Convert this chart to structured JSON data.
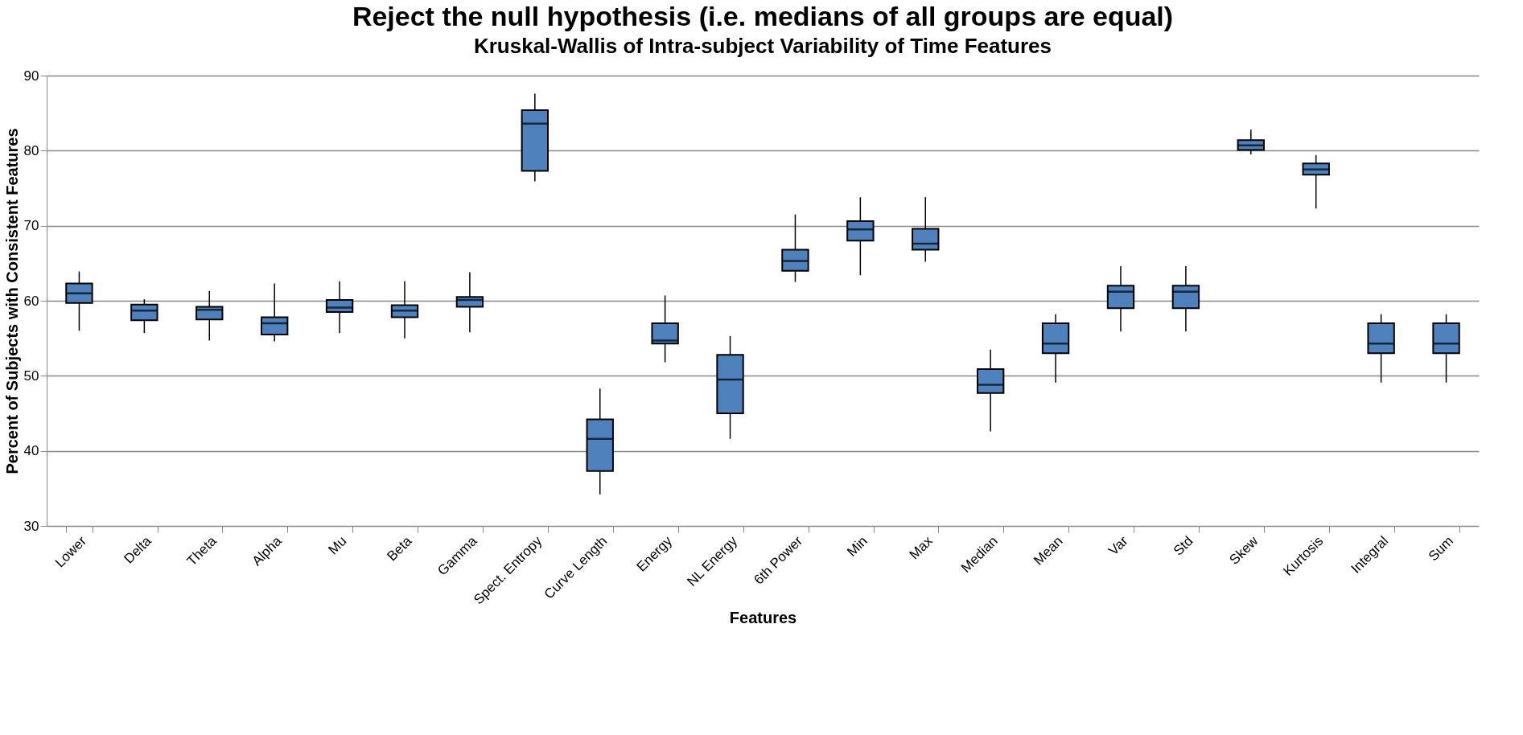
{
  "chart_data": {
    "type": "box",
    "title": "Reject the null hypothesis (i.e. medians of all groups are equal)",
    "subtitle": "Kruskal-Wallis of Intra-subject Variability of Time Features",
    "xlabel": "Features",
    "ylabel": "Percent of Subjects with Consistent Features",
    "categories": [
      "Lower",
      "Delta",
      "Theta",
      "Alpha",
      "Mu",
      "Beta",
      "Gamma",
      "Spect. Entropy",
      "Curve Length",
      "Energy",
      "NL Energy",
      "6th Power",
      "Min",
      "Max",
      "Median",
      "Mean",
      "Var",
      "Std",
      "Skew",
      "Kurtosis",
      "Integral",
      "Sum"
    ],
    "color": "#4f81bd",
    "boxes": [
      {
        "low": 56.0,
        "q1": 59.7,
        "median": 61.0,
        "q3": 62.3,
        "high": 63.9
      },
      {
        "low": 55.7,
        "q1": 57.4,
        "median": 58.7,
        "q3": 59.5,
        "high": 60.2
      },
      {
        "low": 54.7,
        "q1": 57.5,
        "median": 58.8,
        "q3": 59.2,
        "high": 61.3
      },
      {
        "low": 54.6,
        "q1": 55.5,
        "median": 57.0,
        "q3": 57.8,
        "high": 62.3
      },
      {
        "low": 55.7,
        "q1": 58.5,
        "median": 59.1,
        "q3": 60.1,
        "high": 62.6
      },
      {
        "low": 55.0,
        "q1": 57.8,
        "median": 58.7,
        "q3": 59.4,
        "high": 62.6
      },
      {
        "low": 55.8,
        "q1": 59.2,
        "median": 60.1,
        "q3": 60.5,
        "high": 63.8
      },
      {
        "low": 75.9,
        "q1": 77.3,
        "median": 83.6,
        "q3": 85.4,
        "high": 87.6
      },
      {
        "low": 34.2,
        "q1": 37.3,
        "median": 41.6,
        "q3": 44.2,
        "high": 48.3
      },
      {
        "low": 51.8,
        "q1": 54.3,
        "median": 54.7,
        "q3": 57.0,
        "high": 60.7
      },
      {
        "low": 41.6,
        "q1": 45.0,
        "median": 49.5,
        "q3": 52.8,
        "high": 55.3
      },
      {
        "low": 62.5,
        "q1": 64.0,
        "median": 65.3,
        "q3": 66.8,
        "high": 71.5
      },
      {
        "low": 63.4,
        "q1": 68.0,
        "median": 69.5,
        "q3": 70.6,
        "high": 73.8
      },
      {
        "low": 65.2,
        "q1": 66.8,
        "median": 67.6,
        "q3": 69.6,
        "high": 73.8
      },
      {
        "low": 42.6,
        "q1": 47.7,
        "median": 48.8,
        "q3": 50.9,
        "high": 53.5
      },
      {
        "low": 49.1,
        "q1": 53.0,
        "median": 54.3,
        "q3": 57.0,
        "high": 58.2
      },
      {
        "low": 55.9,
        "q1": 59.0,
        "median": 61.2,
        "q3": 62.0,
        "high": 64.6
      },
      {
        "low": 55.9,
        "q1": 59.0,
        "median": 61.2,
        "q3": 62.0,
        "high": 64.6
      },
      {
        "low": 79.5,
        "q1": 80.1,
        "median": 80.7,
        "q3": 81.4,
        "high": 82.8
      },
      {
        "low": 72.3,
        "q1": 76.8,
        "median": 77.5,
        "q3": 78.3,
        "high": 79.4
      },
      {
        "low": 49.1,
        "q1": 53.0,
        "median": 54.3,
        "q3": 57.0,
        "high": 58.2
      },
      {
        "low": 49.1,
        "q1": 53.0,
        "median": 54.3,
        "q3": 57.0,
        "high": 58.2
      }
    ],
    "ylim": [
      30,
      90
    ],
    "yticks": [
      30,
      40,
      50,
      60,
      70,
      80,
      90
    ],
    "grid": "y"
  }
}
